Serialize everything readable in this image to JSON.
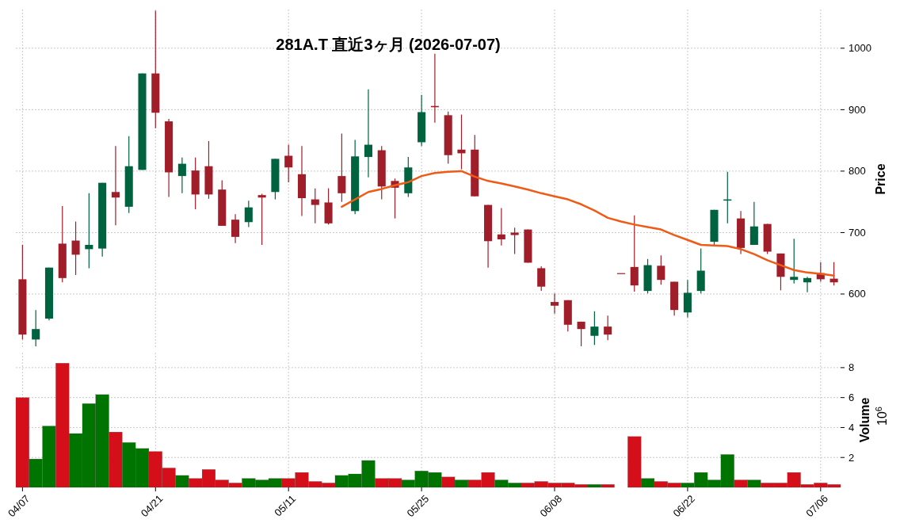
{
  "chart_data": [
    {
      "type": "candlestick",
      "title": "281A.T 直近3ヶ月 (2026-07-07)",
      "ylabel": "Price",
      "categories": [
        null,
        null,
        null,
        null,
        null,
        null,
        null,
        null,
        null,
        null,
        null,
        null,
        null,
        null,
        null,
        null,
        null,
        null,
        null,
        null,
        null,
        null,
        null,
        null,
        null,
        null,
        null,
        null,
        null,
        null,
        null,
        null,
        null,
        null,
        null,
        null,
        null,
        null,
        null,
        null,
        null,
        null,
        null,
        null,
        null,
        null,
        null,
        null,
        null,
        null,
        null,
        null,
        null,
        null,
        null,
        null,
        null,
        null,
        null,
        null,
        null,
        null
      ],
      "ohlc": [
        [
          624,
          680,
          526,
          534
        ],
        [
          526,
          574,
          515,
          543
        ],
        [
          560,
          643,
          557,
          643
        ],
        [
          682,
          743,
          619,
          626
        ],
        [
          687,
          718,
          631,
          664
        ],
        [
          673,
          764,
          642,
          680
        ],
        [
          674,
          781,
          661,
          781
        ],
        [
          766,
          841,
          712,
          757
        ],
        [
          742,
          857,
          732,
          808
        ],
        [
          802,
          959,
          802,
          959
        ],
        [
          959,
          1061,
          870,
          895
        ],
        [
          881,
          885,
          758,
          798
        ],
        [
          792,
          822,
          764,
          812
        ],
        [
          801,
          822,
          738,
          762
        ],
        [
          808,
          849,
          755,
          762
        ],
        [
          770,
          785,
          711,
          711
        ],
        [
          721,
          730,
          683,
          693
        ],
        [
          717,
          752,
          709,
          741
        ],
        [
          761,
          763,
          680,
          757
        ],
        [
          766,
          820,
          754,
          820
        ],
        [
          825,
          843,
          782,
          806
        ],
        [
          795,
          841,
          727,
          756
        ],
        [
          754,
          772,
          715,
          745
        ],
        [
          749,
          772,
          713,
          715
        ],
        [
          792,
          861,
          750,
          764
        ],
        [
          735,
          851,
          730,
          824
        ],
        [
          823,
          933,
          790,
          843
        ],
        [
          834,
          841,
          754,
          775
        ],
        [
          784,
          788,
          723,
          773
        ],
        [
          764,
          823,
          758,
          806
        ],
        [
          847,
          924,
          841,
          896
        ],
        [
          906,
          991,
          879,
          904
        ],
        [
          891,
          897,
          812,
          826
        ],
        [
          835,
          892,
          803,
          829
        ],
        [
          835,
          859,
          759,
          759
        ],
        [
          745,
          745,
          643,
          686
        ],
        [
          697,
          740,
          679,
          689
        ],
        [
          700,
          708,
          665,
          696
        ],
        [
          705,
          705,
          651,
          651
        ],
        [
          642,
          645,
          605,
          612
        ],
        [
          587,
          601,
          568,
          581
        ],
        [
          590,
          590,
          539,
          550
        ],
        [
          555,
          555,
          515,
          543
        ],
        [
          532,
          572,
          517,
          547
        ],
        [
          547,
          565,
          525,
          534
        ],
        [
          634,
          634,
          634,
          634
        ],
        [
          644,
          728,
          604,
          614
        ],
        [
          605,
          657,
          601,
          647
        ],
        [
          646,
          663,
          615,
          623
        ],
        [
          620,
          620,
          565,
          574
        ],
        [
          570,
          623,
          562,
          602
        ],
        [
          605,
          674,
          601,
          638
        ],
        [
          685,
          737,
          678,
          737
        ],
        [
          752,
          799,
          715,
          754
        ],
        [
          723,
          735,
          665,
          675
        ],
        [
          680,
          750,
          680,
          710
        ],
        [
          714,
          714,
          665,
          669
        ],
        [
          666,
          666,
          606,
          628
        ],
        [
          623,
          690,
          617,
          628
        ],
        [
          619,
          628,
          603,
          626
        ],
        [
          634,
          652,
          620,
          624
        ],
        [
          625,
          652,
          614,
          619
        ]
      ],
      "colors": [
        "#a01e2a",
        "#006340",
        "#006340",
        "#a01e2a",
        "#a01e2a",
        "#006340",
        "#006340",
        "#a01e2a",
        "#006340",
        "#006340",
        "#a01e2a",
        "#a01e2a",
        "#006340",
        "#a01e2a",
        "#a01e2a",
        "#a01e2a",
        "#a01e2a",
        "#006340",
        "#a01e2a",
        "#006340",
        "#a01e2a",
        "#a01e2a",
        "#a01e2a",
        "#a01e2a",
        "#a01e2a",
        "#006340",
        "#006340",
        "#a01e2a",
        "#a01e2a",
        "#006340",
        "#006340",
        "#a01e2a",
        "#a01e2a",
        "#a01e2a",
        "#a01e2a",
        "#a01e2a",
        "#a01e2a",
        "#a01e2a",
        "#a01e2a",
        "#a01e2a",
        "#a01e2a",
        "#a01e2a",
        "#a01e2a",
        "#006340",
        "#a01e2a",
        "#a01e2a",
        "#a01e2a",
        "#006340",
        "#a01e2a",
        "#a01e2a",
        "#006340",
        "#006340",
        "#006340",
        "#006340",
        "#a01e2a",
        "#006340",
        "#a01e2a",
        "#a01e2a",
        "#006340",
        "#006340",
        "#a01e2a",
        "#a01e2a"
      ],
      "series": [
        {
          "type": "line",
          "color": "#f05a14",
          "values": [
            null,
            null,
            null,
            null,
            null,
            null,
            null,
            null,
            null,
            null,
            null,
            null,
            null,
            null,
            null,
            null,
            null,
            null,
            null,
            null,
            null,
            null,
            null,
            null,
            742,
            754,
            766,
            771,
            777,
            782,
            792,
            797,
            799,
            800,
            791,
            784,
            780,
            775,
            770,
            764,
            759,
            754,
            746,
            736,
            724,
            718,
            713,
            709,
            705,
            696,
            688,
            680,
            679,
            678,
            673,
            665,
            655,
            647,
            639,
            635,
            633,
            630
          ]
        }
      ],
      "ylim": [
        511,
        1063
      ],
      "yticks": [
        600,
        700,
        800,
        900,
        1000
      ],
      "grid": true,
      "tick_labels": "y"
    },
    {
      "type": "bar",
      "ylabel": "Volume",
      "annotations": [
        "10$^{6}$"
      ],
      "categories": [
        "04/07",
        null,
        null,
        null,
        null,
        null,
        null,
        null,
        null,
        null,
        "04/21",
        null,
        null,
        null,
        null,
        null,
        null,
        null,
        null,
        null,
        "05/11",
        null,
        null,
        null,
        null,
        null,
        null,
        null,
        null,
        null,
        "05/25",
        null,
        null,
        null,
        null,
        null,
        null,
        null,
        null,
        null,
        "06/08",
        null,
        null,
        null,
        null,
        null,
        null,
        null,
        null,
        null,
        "06/22",
        null,
        null,
        null,
        null,
        null,
        null,
        null,
        null,
        null,
        "07/06",
        null
      ],
      "values": [
        6.0,
        1.9,
        4.1,
        8.3,
        3.6,
        5.6,
        6.2,
        3.7,
        3.0,
        2.6,
        2.4,
        1.3,
        0.8,
        0.6,
        1.2,
        0.5,
        0.3,
        0.6,
        0.5,
        0.6,
        0.6,
        1.0,
        0.4,
        0.3,
        0.8,
        0.9,
        1.8,
        0.6,
        0.6,
        0.5,
        1.1,
        1.0,
        0.7,
        0.5,
        0.5,
        1.0,
        0.5,
        0.3,
        0.3,
        0.4,
        0.3,
        0.3,
        0.2,
        0.2,
        0.2,
        null,
        3.4,
        0.6,
        0.4,
        0.3,
        0.3,
        1.0,
        0.5,
        2.2,
        0.5,
        0.5,
        0.3,
        0.3,
        1.0,
        0.2,
        0.3,
        0.2
      ],
      "colors": [
        "#d40f1a",
        "#007400",
        "#007400",
        "#d40f1a",
        "#007400",
        "#007400",
        "#007400",
        "#d40f1a",
        "#007400",
        "#007400",
        "#d40f1a",
        "#d40f1a",
        "#007400",
        "#d40f1a",
        "#d40f1a",
        "#d40f1a",
        "#d40f1a",
        "#007400",
        "#007400",
        "#007400",
        "#d40f1a",
        "#d40f1a",
        "#d40f1a",
        "#d40f1a",
        "#007400",
        "#007400",
        "#007400",
        "#d40f1a",
        "#d40f1a",
        "#007400",
        "#007400",
        "#007400",
        "#d40f1a",
        "#007400",
        "#d40f1a",
        "#d40f1a",
        "#007400",
        "#007400",
        "#d40f1a",
        "#d40f1a",
        "#d40f1a",
        "#d40f1a",
        "#d40f1a",
        "#007400",
        "#d40f1a",
        null,
        "#d40f1a",
        "#007400",
        "#d40f1a",
        "#d40f1a",
        "#007400",
        "#007400",
        "#007400",
        "#007400",
        "#d40f1a",
        "#007400",
        "#d40f1a",
        "#d40f1a",
        "#d40f1a",
        "#d40f1a",
        "#d40f1a",
        "#d40f1a"
      ],
      "ylim": [
        0,
        9
      ],
      "yticks": [
        2,
        4,
        6,
        8
      ],
      "grid": true
    }
  ]
}
